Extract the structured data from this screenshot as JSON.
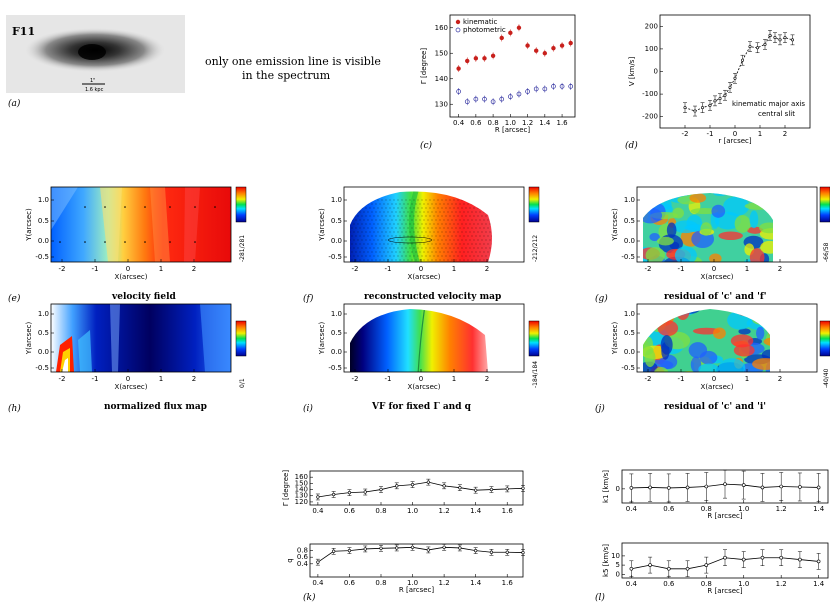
{
  "galaxy_label": "F11",
  "scale_bar": {
    "arcsec": "1\"",
    "kpc": "1.6 kpc"
  },
  "note_lines": [
    "only one emission line is visible",
    "in the spectrum"
  ],
  "panel_letters": {
    "a": "(a)",
    "c": "(c)",
    "d": "(d)",
    "e": "(e)",
    "f": "(f)",
    "g": "(g)",
    "h": "(h)",
    "i": "(i)",
    "j": "(j)",
    "k": "(k)",
    "l": "(l)"
  },
  "map_captions": {
    "e": "velocity field",
    "f": "reconstructed velocity map",
    "g": "residual of 'c' and 'f'",
    "h": "normalized flux map",
    "i": "VF for fixed Γ and q",
    "j": "residual of 'c' and 'i'"
  },
  "colorbar_labels": {
    "e": "-281/281",
    "f": "-212/212",
    "g": "-66/58",
    "h": "0/1",
    "i": "-184/184",
    "j": "-40/40"
  },
  "map_axes": {
    "xlabel": "X(arcsec)",
    "ylabel": "Y(arcsec)",
    "xticks": [
      "-2",
      "-1",
      "0",
      "1",
      "2"
    ],
    "yticks": [
      "1.0",
      "0.5",
      "0.0",
      "-0.5"
    ]
  },
  "chart_data": [
    {
      "id": "c",
      "type": "scatter",
      "xlabel": "R [arcsec]",
      "ylabel": "Γ [degree]",
      "xlim": [
        0.3,
        1.75
      ],
      "ylim": [
        125,
        165
      ],
      "xticks": [
        "0.4",
        "0.6",
        "0.8",
        "1.0",
        "1.2",
        "1.4",
        "1.6"
      ],
      "xtick_values": [
        0.4,
        0.6,
        0.8,
        1.0,
        1.2,
        1.4,
        1.6
      ],
      "yticks": [
        "130",
        "140",
        "150",
        "160"
      ],
      "ytick_values": [
        130,
        140,
        150,
        160
      ],
      "legend": [
        "kinematic",
        "photometric"
      ],
      "series": [
        {
          "name": "kinematic",
          "color": "#c8201c",
          "x": [
            0.4,
            0.5,
            0.6,
            0.7,
            0.8,
            0.9,
            1.0,
            1.1,
            1.2,
            1.3,
            1.4,
            1.5,
            1.6,
            1.7
          ],
          "y": [
            144,
            147,
            148,
            148,
            149,
            156,
            158,
            160,
            153,
            151,
            150,
            152,
            153,
            154
          ]
        },
        {
          "name": "photometric",
          "color": "#3030a0",
          "x": [
            0.4,
            0.5,
            0.6,
            0.7,
            0.8,
            0.9,
            1.0,
            1.1,
            1.2,
            1.3,
            1.4,
            1.5,
            1.6,
            1.7
          ],
          "y": [
            135,
            131,
            132,
            132,
            131,
            132,
            133,
            134,
            135,
            136,
            136,
            137,
            137,
            137
          ]
        }
      ]
    },
    {
      "id": "d",
      "type": "line",
      "xlabel": "r [arcsec]",
      "ylabel": "V [km/s]",
      "xlim": [
        -3,
        3
      ],
      "ylim": [
        -250,
        250
      ],
      "xticks": [
        "-2",
        "-1",
        "0",
        "1",
        "2"
      ],
      "xtick_values": [
        -2,
        -1,
        0,
        1,
        2
      ],
      "yticks": [
        "-200",
        "-100",
        "0",
        "100",
        "200"
      ],
      "ytick_values": [
        -200,
        -100,
        0,
        100,
        200
      ],
      "legend": [
        "kinematic major axis",
        "central slit"
      ],
      "series": [
        {
          "name": "kinematic major axis",
          "x": [
            -2.0,
            -1.6,
            -1.3,
            -1.0,
            -0.8,
            -0.6,
            -0.4,
            -0.2,
            0.0,
            0.3,
            0.6,
            0.9,
            1.2,
            1.4,
            1.6,
            1.8,
            2.0,
            2.3
          ],
          "y": [
            -160,
            -175,
            -160,
            -150,
            -130,
            -120,
            -105,
            -70,
            -30,
            50,
            110,
            105,
            120,
            160,
            150,
            140,
            150,
            140
          ]
        }
      ]
    },
    {
      "id": "k1",
      "type": "line",
      "xlabel": "",
      "ylabel": "Γ [degree]",
      "xlim": [
        0.35,
        1.7
      ],
      "ylim": [
        115,
        170
      ],
      "xticks": [
        "0.4",
        "0.6",
        "0.8",
        "1.0",
        "1.2",
        "1.4",
        "1.6"
      ],
      "xtick_values": [
        0.4,
        0.6,
        0.8,
        1.0,
        1.2,
        1.4,
        1.6
      ],
      "yticks": [
        "120",
        "130",
        "140",
        "150",
        "160"
      ],
      "ytick_values": [
        120,
        130,
        140,
        150,
        160
      ],
      "series": [
        {
          "name": "Gamma",
          "x": [
            0.4,
            0.5,
            0.6,
            0.7,
            0.8,
            0.9,
            1.0,
            1.1,
            1.2,
            1.3,
            1.4,
            1.5,
            1.6,
            1.7
          ],
          "y": [
            128,
            132,
            135,
            136,
            140,
            146,
            148,
            152,
            146,
            143,
            139,
            140,
            141,
            142
          ]
        }
      ]
    },
    {
      "id": "k2",
      "type": "line",
      "xlabel": "R [arcsec]",
      "ylabel": "q",
      "xlim": [
        0.35,
        1.7
      ],
      "ylim": [
        0.0,
        1.0
      ],
      "xticks": [
        "0.4",
        "0.6",
        "0.8",
        "1.0",
        "1.2",
        "1.4",
        "1.6"
      ],
      "xtick_values": [
        0.4,
        0.6,
        0.8,
        1.0,
        1.2,
        1.4,
        1.6
      ],
      "yticks": [
        "0.4",
        "0.6",
        "0.8"
      ],
      "ytick_values": [
        0.4,
        0.6,
        0.8
      ],
      "series": [
        {
          "name": "q",
          "x": [
            0.4,
            0.5,
            0.6,
            0.7,
            0.8,
            0.9,
            1.0,
            1.1,
            1.2,
            1.3,
            1.4,
            1.5,
            1.6,
            1.7
          ],
          "y": [
            0.45,
            0.78,
            0.8,
            0.85,
            0.87,
            0.88,
            0.9,
            0.82,
            0.9,
            0.88,
            0.8,
            0.75,
            0.75,
            0.74
          ]
        }
      ]
    },
    {
      "id": "l1",
      "type": "line",
      "xlabel": "R [arcsec]",
      "ylabel": "k1 [km/s]",
      "xlim": [
        0.35,
        1.45
      ],
      "ylim": [
        -30,
        40
      ],
      "xticks": [
        "0.4",
        "0.6",
        "0.8",
        "1.0",
        "1.2",
        "1.4"
      ],
      "xtick_values": [
        0.4,
        0.6,
        0.8,
        1.0,
        1.2,
        1.4
      ],
      "yticks": [
        "0"
      ],
      "ytick_values": [
        0
      ],
      "series": [
        {
          "name": "k1",
          "x": [
            0.4,
            0.5,
            0.6,
            0.7,
            0.8,
            0.9,
            1.0,
            1.1,
            1.2,
            1.3,
            1.4
          ],
          "y": [
            2,
            3,
            2,
            3,
            5,
            10,
            8,
            3,
            5,
            4,
            3
          ]
        }
      ]
    },
    {
      "id": "l2",
      "type": "line",
      "xlabel": "R [arcsec]",
      "ylabel": "k5 [km/s]",
      "xlim": [
        0.35,
        1.45
      ],
      "ylim": [
        -2,
        17
      ],
      "xticks": [
        "0.4",
        "0.6",
        "0.8",
        "1.0",
        "1.2",
        "1.4"
      ],
      "xtick_values": [
        0.4,
        0.6,
        0.8,
        1.0,
        1.2,
        1.4
      ],
      "yticks": [
        "0",
        "5",
        "10"
      ],
      "ytick_values": [
        0,
        5,
        10
      ],
      "series": [
        {
          "name": "k5",
          "x": [
            0.4,
            0.5,
            0.6,
            0.7,
            0.8,
            0.9,
            1.0,
            1.1,
            1.2,
            1.3,
            1.4
          ],
          "y": [
            3,
            5,
            3,
            3,
            5,
            9,
            8,
            9,
            9,
            8,
            7
          ]
        }
      ]
    }
  ]
}
